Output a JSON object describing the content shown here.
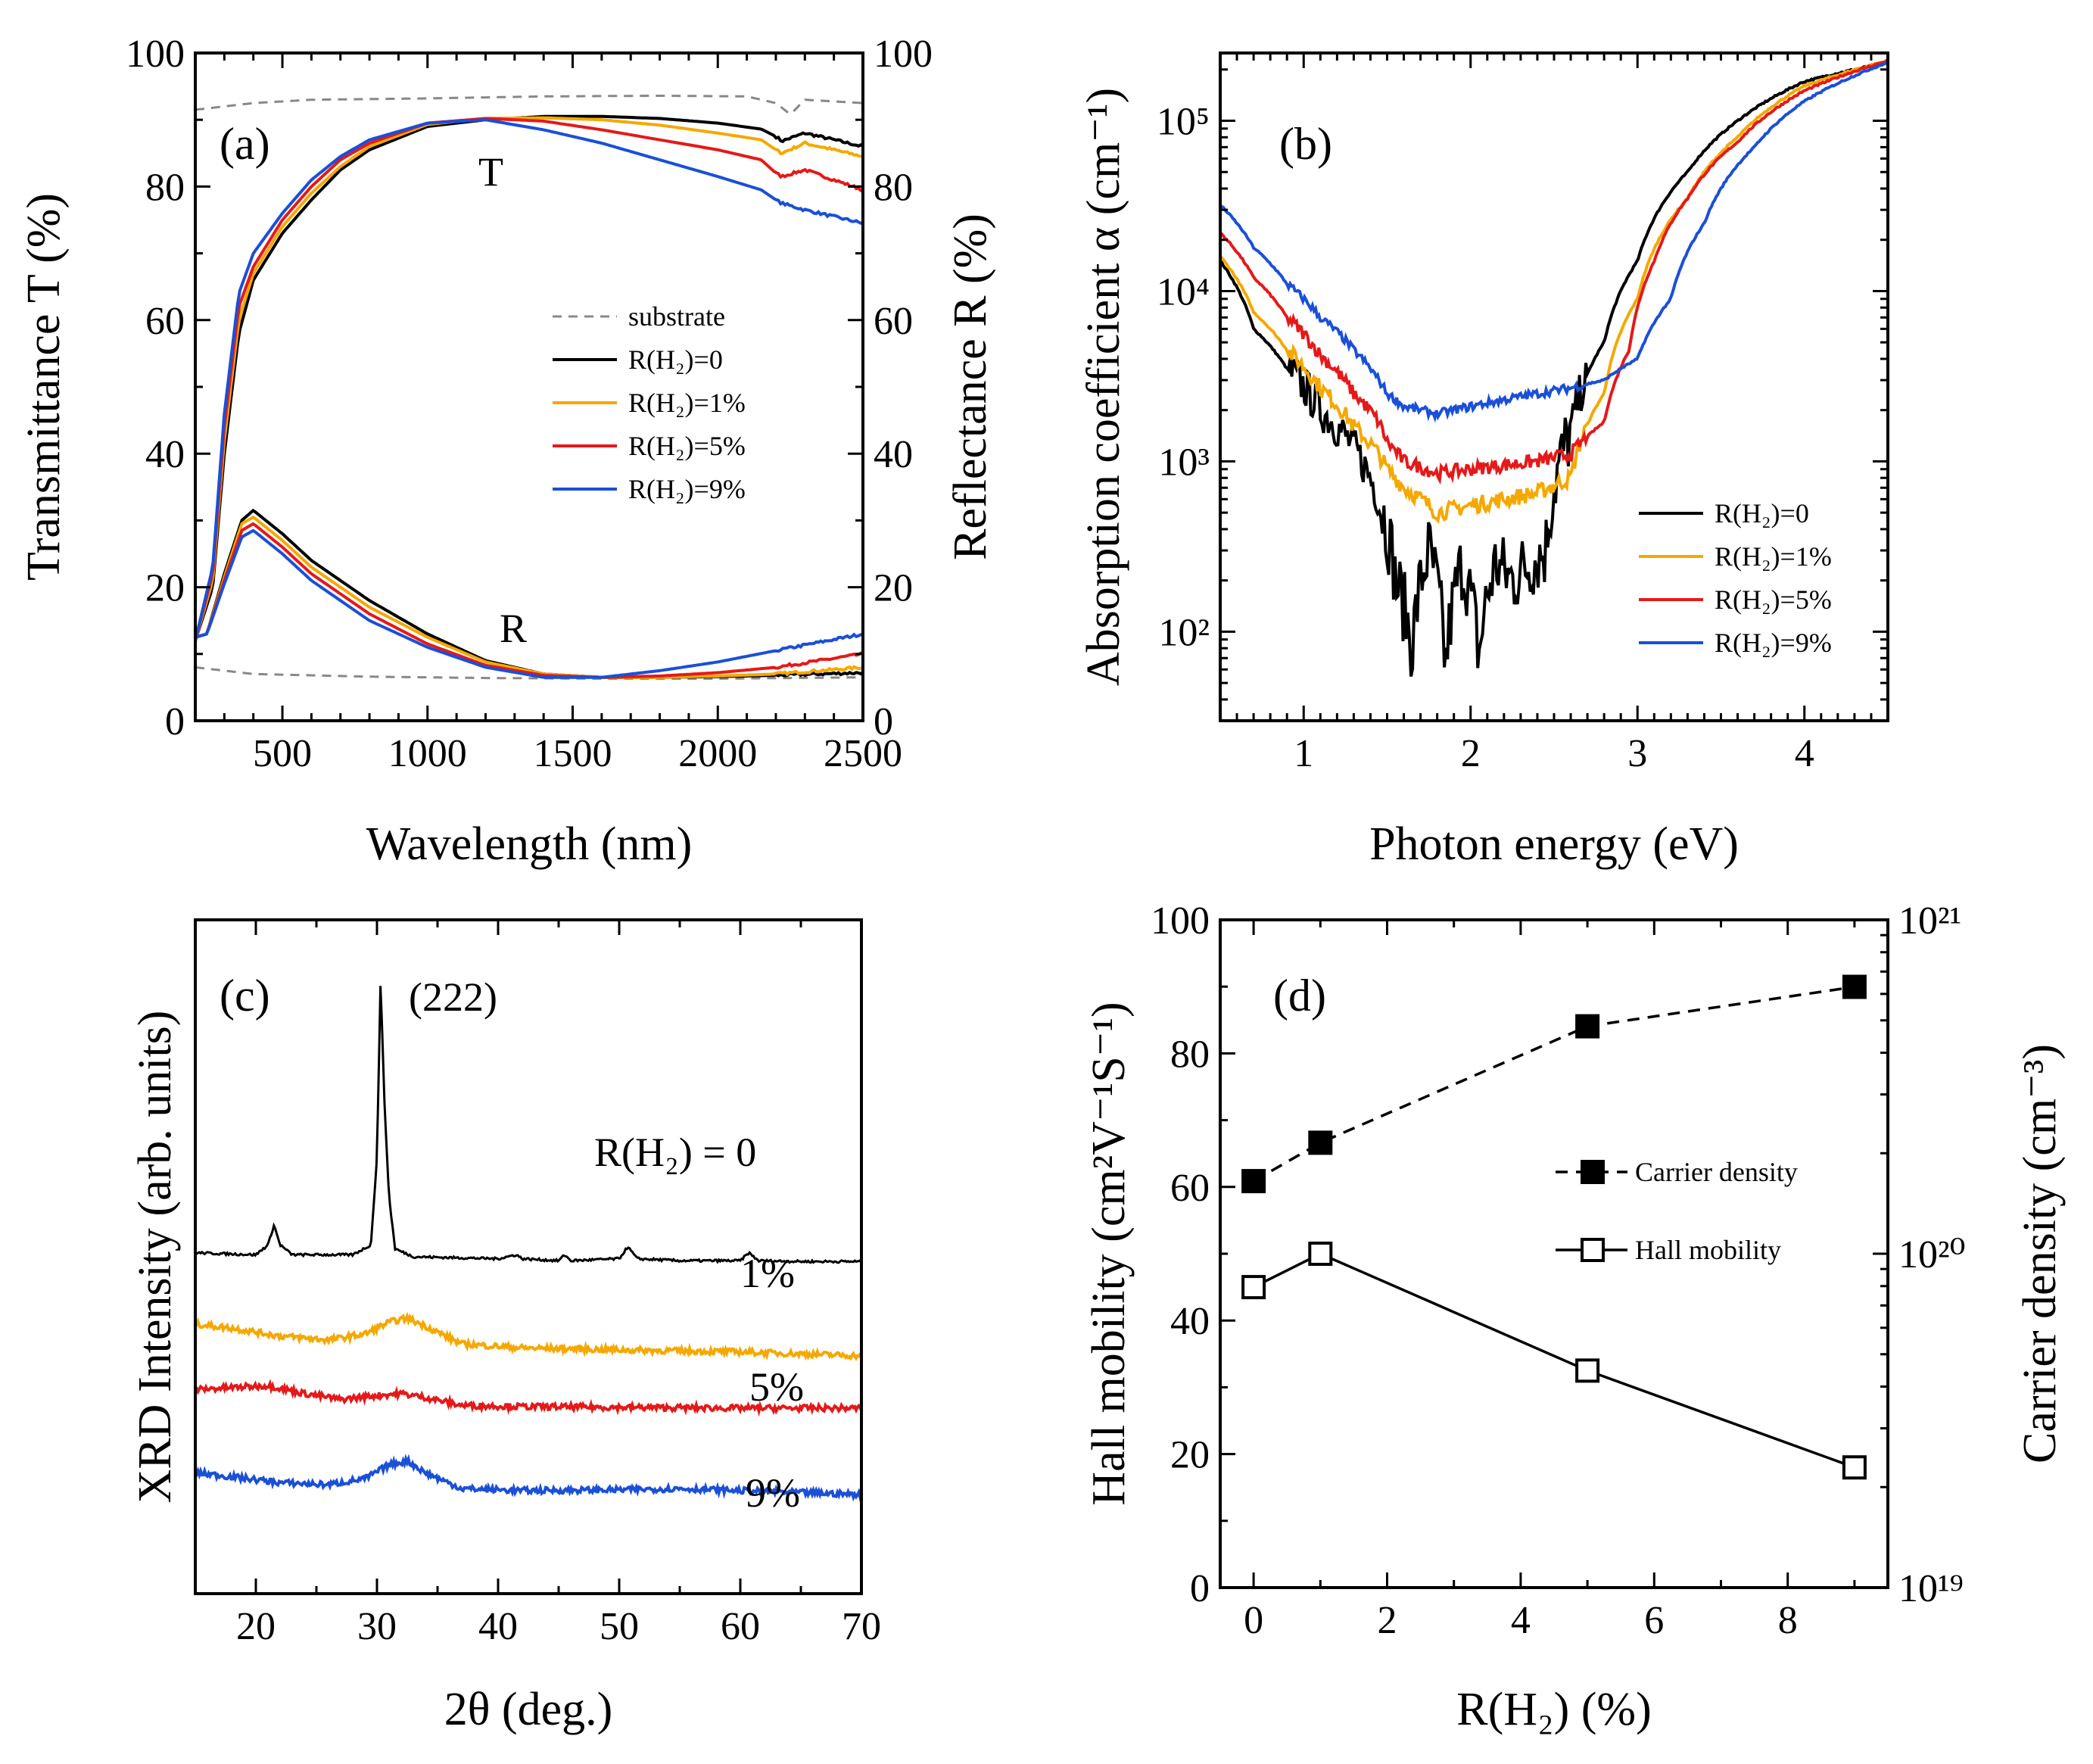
{
  "chart_data": [
    {
      "panel": "(a)",
      "type": "line",
      "xlabel": "Wavelength (nm)",
      "ylabel": "Transmittance T (%)",
      "ylabel_right": "Reflectance R (%)",
      "xlim": [
        200,
        2500
      ],
      "ylim": [
        0,
        100
      ],
      "xticks": [
        "500",
        "1000",
        "1500",
        "2000",
        "2500"
      ],
      "yticks": [
        "0",
        "20",
        "40",
        "60",
        "80",
        "100"
      ],
      "yticks_right": [
        "0",
        "20",
        "40",
        "60",
        "80",
        "100"
      ],
      "annotations": [
        "T",
        "R"
      ],
      "legend": [
        "substrate",
        "R(H₂)=0",
        "R(H₂)=1%",
        "R(H₂)=5%",
        "R(H₂)=9%"
      ],
      "series": [
        {
          "name": "substrate T",
          "color": "#888888",
          "dash": true,
          "x": [
            200,
            400,
            600,
            1000,
            1400,
            1800,
            2100,
            2200,
            2250,
            2300,
            2500
          ],
          "y": [
            91.5,
            92.5,
            93,
            93.2,
            93.5,
            93.6,
            93.5,
            92.5,
            90.8,
            93,
            92.5
          ]
        },
        {
          "name": "substrate R",
          "color": "#888888",
          "dash": true,
          "x": [
            200,
            400,
            800,
            1200,
            1600,
            2000,
            2500
          ],
          "y": [
            8,
            7,
            6.6,
            6.4,
            6.3,
            6.3,
            6.5
          ]
        },
        {
          "name": "R(H₂)=0 T",
          "color": "#000000",
          "x": [
            200,
            260,
            300,
            350,
            400,
            500,
            600,
            700,
            800,
            1000,
            1200,
            1400,
            1600,
            1800,
            2000,
            2150,
            2200,
            2220,
            2300,
            2500
          ],
          "y": [
            12,
            20,
            40,
            58,
            66,
            73,
            78,
            82.5,
            85.5,
            89,
            90,
            90.5,
            90.5,
            90.2,
            89.5,
            88.6,
            87.5,
            86.8,
            88,
            86
          ]
        },
        {
          "name": "R(H₂)=1% T",
          "color": "#f5a800",
          "x": [
            200,
            260,
            300,
            350,
            400,
            500,
            600,
            700,
            800,
            1000,
            1200,
            1400,
            1600,
            1800,
            2000,
            2150,
            2200,
            2220,
            2300,
            2500
          ],
          "y": [
            12,
            21,
            42,
            60,
            67,
            74,
            79,
            83,
            86,
            89.3,
            90.2,
            90.3,
            90,
            89.2,
            88,
            87,
            85.5,
            85,
            86.5,
            84.5
          ]
        },
        {
          "name": "R(H₂)=5% T",
          "color": "#e51919",
          "x": [
            200,
            260,
            300,
            350,
            400,
            500,
            600,
            700,
            800,
            1000,
            1200,
            1400,
            1600,
            1800,
            2000,
            2150,
            2200,
            2220,
            2300,
            2500
          ],
          "y": [
            12,
            22,
            44,
            62,
            68,
            75,
            80,
            84,
            86.5,
            89.5,
            90.2,
            89.8,
            88.5,
            87,
            85.5,
            84,
            82,
            81.5,
            82.5,
            79.5
          ]
        },
        {
          "name": "R(H₂)=9% T",
          "color": "#1a4fd8",
          "x": [
            200,
            260,
            300,
            350,
            400,
            500,
            600,
            700,
            800,
            1000,
            1200,
            1400,
            1600,
            1800,
            2000,
            2150,
            2200,
            2220,
            2300,
            2500
          ],
          "y": [
            12,
            23,
            46,
            64,
            70,
            76,
            81,
            84.5,
            87,
            89.5,
            90,
            88.5,
            86.5,
            84,
            81.5,
            79.5,
            78,
            77.5,
            76.5,
            74.5
          ]
        },
        {
          "name": "R(H₂)=0 R",
          "color": "#000000",
          "x": [
            200,
            240,
            300,
            360,
            400,
            500,
            600,
            800,
            1000,
            1200,
            1400,
            1600,
            1800,
            2000,
            2200,
            2500
          ],
          "y": [
            12.5,
            13,
            22,
            30,
            31.5,
            28,
            24,
            18,
            13,
            9,
            7,
            6.5,
            6.5,
            6.6,
            6.8,
            7.2
          ]
        },
        {
          "name": "R(H₂)=1% R",
          "color": "#f5a800",
          "x": [
            200,
            240,
            300,
            360,
            400,
            500,
            600,
            800,
            1000,
            1200,
            1400,
            1600,
            1800,
            2000,
            2200,
            2500
          ],
          "y": [
            12.5,
            13,
            21.5,
            29.5,
            30.5,
            27,
            23,
            17,
            12.5,
            8.8,
            7,
            6.5,
            6.5,
            6.7,
            7,
            8
          ]
        },
        {
          "name": "R(H₂)=5% R",
          "color": "#e51919",
          "x": [
            200,
            240,
            300,
            360,
            400,
            500,
            600,
            800,
            1000,
            1200,
            1400,
            1600,
            1800,
            2000,
            2200,
            2500
          ],
          "y": [
            12.5,
            13,
            21,
            28.5,
            29.5,
            26,
            22,
            16,
            11.5,
            8.3,
            6.8,
            6.5,
            6.7,
            7.2,
            8,
            10
          ]
        },
        {
          "name": "R(H₂)=9% R",
          "color": "#1a4fd8",
          "x": [
            200,
            240,
            300,
            360,
            400,
            500,
            600,
            800,
            1000,
            1200,
            1400,
            1600,
            1800,
            2000,
            2200,
            2500
          ],
          "y": [
            12.5,
            13,
            20.5,
            27.5,
            28.5,
            25,
            21,
            15,
            11,
            8,
            6.5,
            6.5,
            7.5,
            8.8,
            10.5,
            13
          ]
        }
      ]
    },
    {
      "panel": "(b)",
      "type": "line",
      "xlabel": "Photon energy (eV)",
      "ylabel": "Absorption coefficient  α (cm⁻¹)",
      "xlim": [
        0.5,
        4.5
      ],
      "ylim": [
        30,
        250000
      ],
      "yscale": "log",
      "xticks": [
        "1",
        "2",
        "3",
        "4"
      ],
      "yticks": [
        "10²",
        "10³",
        "10⁴",
        "10⁵"
      ],
      "legend": [
        "R(H₂)=0",
        "R(H₂)=1%",
        "R(H₂)=5%",
        "R(H₂)=9%"
      ],
      "series": [
        {
          "name": "R(H₂)=0",
          "color": "#000000",
          "x": [
            0.5,
            0.7,
            0.9,
            1.1,
            1.3,
            1.45,
            1.55,
            1.65,
            1.75,
            1.85,
            1.95,
            2.05,
            2.15,
            2.25,
            2.35,
            2.45,
            2.6,
            2.8,
            3.0,
            3.3,
            3.6,
            4.0,
            4.5
          ],
          "y": [
            15000,
            6000,
            3500,
            2000,
            1200,
            600,
            200,
            80,
            300,
            60,
            250,
            70,
            250,
            200,
            250,
            300,
            1500,
            5000,
            15000,
            50000,
            100000,
            170000,
            220000
          ]
        },
        {
          "name": "R(H₂)=1%",
          "color": "#f5a800",
          "x": [
            0.5,
            0.7,
            0.9,
            1.1,
            1.3,
            1.45,
            1.5,
            1.6,
            1.8,
            2.0,
            2.2,
            2.4,
            2.6,
            2.8,
            3.0,
            3.3,
            3.6,
            4.0,
            4.5
          ],
          "y": [
            16000,
            7500,
            4500,
            2700,
            1600,
            1100,
            900,
            700,
            500,
            550,
            600,
            650,
            800,
            2500,
            9000,
            35000,
            80000,
            160000,
            225000
          ]
        },
        {
          "name": "R(H₂)=5%",
          "color": "#e51919",
          "x": [
            0.5,
            0.7,
            0.9,
            1.1,
            1.3,
            1.45,
            1.5,
            1.6,
            1.8,
            2.0,
            2.2,
            2.4,
            2.6,
            2.8,
            2.95,
            3.1,
            3.3,
            3.6,
            4.0,
            4.5
          ],
          "y": [
            22000,
            12000,
            7000,
            4200,
            2500,
            1700,
            1300,
            1000,
            850,
            900,
            950,
            1000,
            1100,
            1700,
            4500,
            15000,
            35000,
            75000,
            150000,
            225000
          ]
        },
        {
          "name": "R(H₂)=9%",
          "color": "#1a4fd8",
          "x": [
            0.5,
            0.7,
            0.9,
            1.1,
            1.3,
            1.45,
            1.5,
            1.6,
            1.8,
            2.0,
            2.2,
            2.4,
            2.6,
            2.8,
            3.0,
            3.2,
            3.4,
            3.7,
            4.0,
            4.5
          ],
          "y": [
            32000,
            18000,
            11000,
            7000,
            4500,
            3000,
            2500,
            2100,
            1900,
            2100,
            2300,
            2500,
            2700,
            3000,
            4000,
            9000,
            25000,
            70000,
            130000,
            220000
          ]
        }
      ]
    },
    {
      "panel": "(c)",
      "type": "line",
      "xlabel": "2θ (deg.)",
      "ylabel": "XRD Intensity (arb. units)",
      "xlim": [
        15,
        70
      ],
      "xticks": [
        "20",
        "30",
        "40",
        "50",
        "60",
        "70"
      ],
      "annotations": [
        "(222)",
        "R(H₂) = 0",
        "1%",
        "5%",
        "9%"
      ],
      "series": [
        {
          "name": "R(H₂) = 0",
          "color": "#000000",
          "x": [
            15,
            20,
            21,
            21.5,
            22,
            23,
            28,
            29.5,
            30,
            30.3,
            30.6,
            31,
            31.5,
            33,
            40,
            41.5,
            42,
            45,
            45.5,
            46,
            50,
            50.7,
            51.5,
            55,
            60,
            60.7,
            61.5,
            65,
            70
          ],
          "y": [
            2.1,
            2.05,
            2.3,
            2.8,
            2.3,
            2.05,
            2.05,
            2.3,
            4.5,
            9,
            6,
            3.5,
            2.2,
            2.0,
            1.95,
            2.05,
            1.95,
            1.9,
            2.05,
            1.9,
            1.95,
            2.25,
            1.95,
            1.9,
            1.9,
            2.1,
            1.9,
            1.88,
            1.88
          ]
        },
        {
          "name": "1%",
          "color": "#f5a800",
          "x": [
            15,
            18,
            22,
            26,
            29,
            31,
            32.5,
            34,
            37,
            42,
            50,
            60,
            70
          ],
          "y": [
            0.3,
            0.2,
            0.0,
            -0.1,
            0.05,
            0.35,
            0.45,
            0.25,
            -0.2,
            -0.3,
            -0.35,
            -0.4,
            -0.5
          ]
        },
        {
          "name": "5%",
          "color": "#e51919",
          "x": [
            15,
            18,
            21,
            24,
            27,
            30,
            32,
            34,
            37,
            42,
            50,
            60,
            70
          ],
          "y": [
            -1.35,
            -1.3,
            -1.25,
            -1.45,
            -1.6,
            -1.5,
            -1.45,
            -1.55,
            -1.75,
            -1.78,
            -1.8,
            -1.82,
            -1.82
          ]
        },
        {
          "name": "9%",
          "color": "#1a4fd8",
          "x": [
            15,
            18,
            22,
            26,
            29,
            31,
            32.5,
            34,
            37,
            42,
            50,
            55,
            60,
            70
          ],
          "y": [
            -3.45,
            -3.55,
            -3.7,
            -3.75,
            -3.6,
            -3.25,
            -3.15,
            -3.45,
            -3.85,
            -3.9,
            -3.88,
            -3.85,
            -3.9,
            -4.0
          ]
        }
      ]
    },
    {
      "panel": "(d)",
      "type": "scatter",
      "xlabel": "R(H₂) (%)",
      "ylabel": "Hall mobility (cm²V⁻¹S⁻¹)",
      "ylabel_right": "Carrier density (cm⁻³)",
      "xlim": [
        -0.5,
        9.5
      ],
      "ylim": [
        0,
        100
      ],
      "ylim_right": [
        1e+19,
        1e+21
      ],
      "xticks": [
        "0",
        "2",
        "4",
        "6",
        "8"
      ],
      "yticks": [
        "0",
        "20",
        "40",
        "60",
        "80",
        "100"
      ],
      "yticks_right": [
        "10¹⁹",
        "10²⁰",
        "10²¹"
      ],
      "legend": [
        "Carrier density",
        "Hall mobility"
      ],
      "series": [
        {
          "name": "Carrier density",
          "axis": "right",
          "marker": "filled-square",
          "dash": true,
          "x": [
            0,
            1,
            5,
            9
          ],
          "y": [
            1.65e+20,
            2.15e+20,
            4.8e+20,
            6.3e+20
          ]
        },
        {
          "name": "Hall mobility",
          "axis": "left",
          "marker": "open-square",
          "dash": false,
          "x": [
            0,
            1,
            5,
            9
          ],
          "y": [
            45,
            50,
            32.5,
            18
          ]
        }
      ]
    }
  ]
}
